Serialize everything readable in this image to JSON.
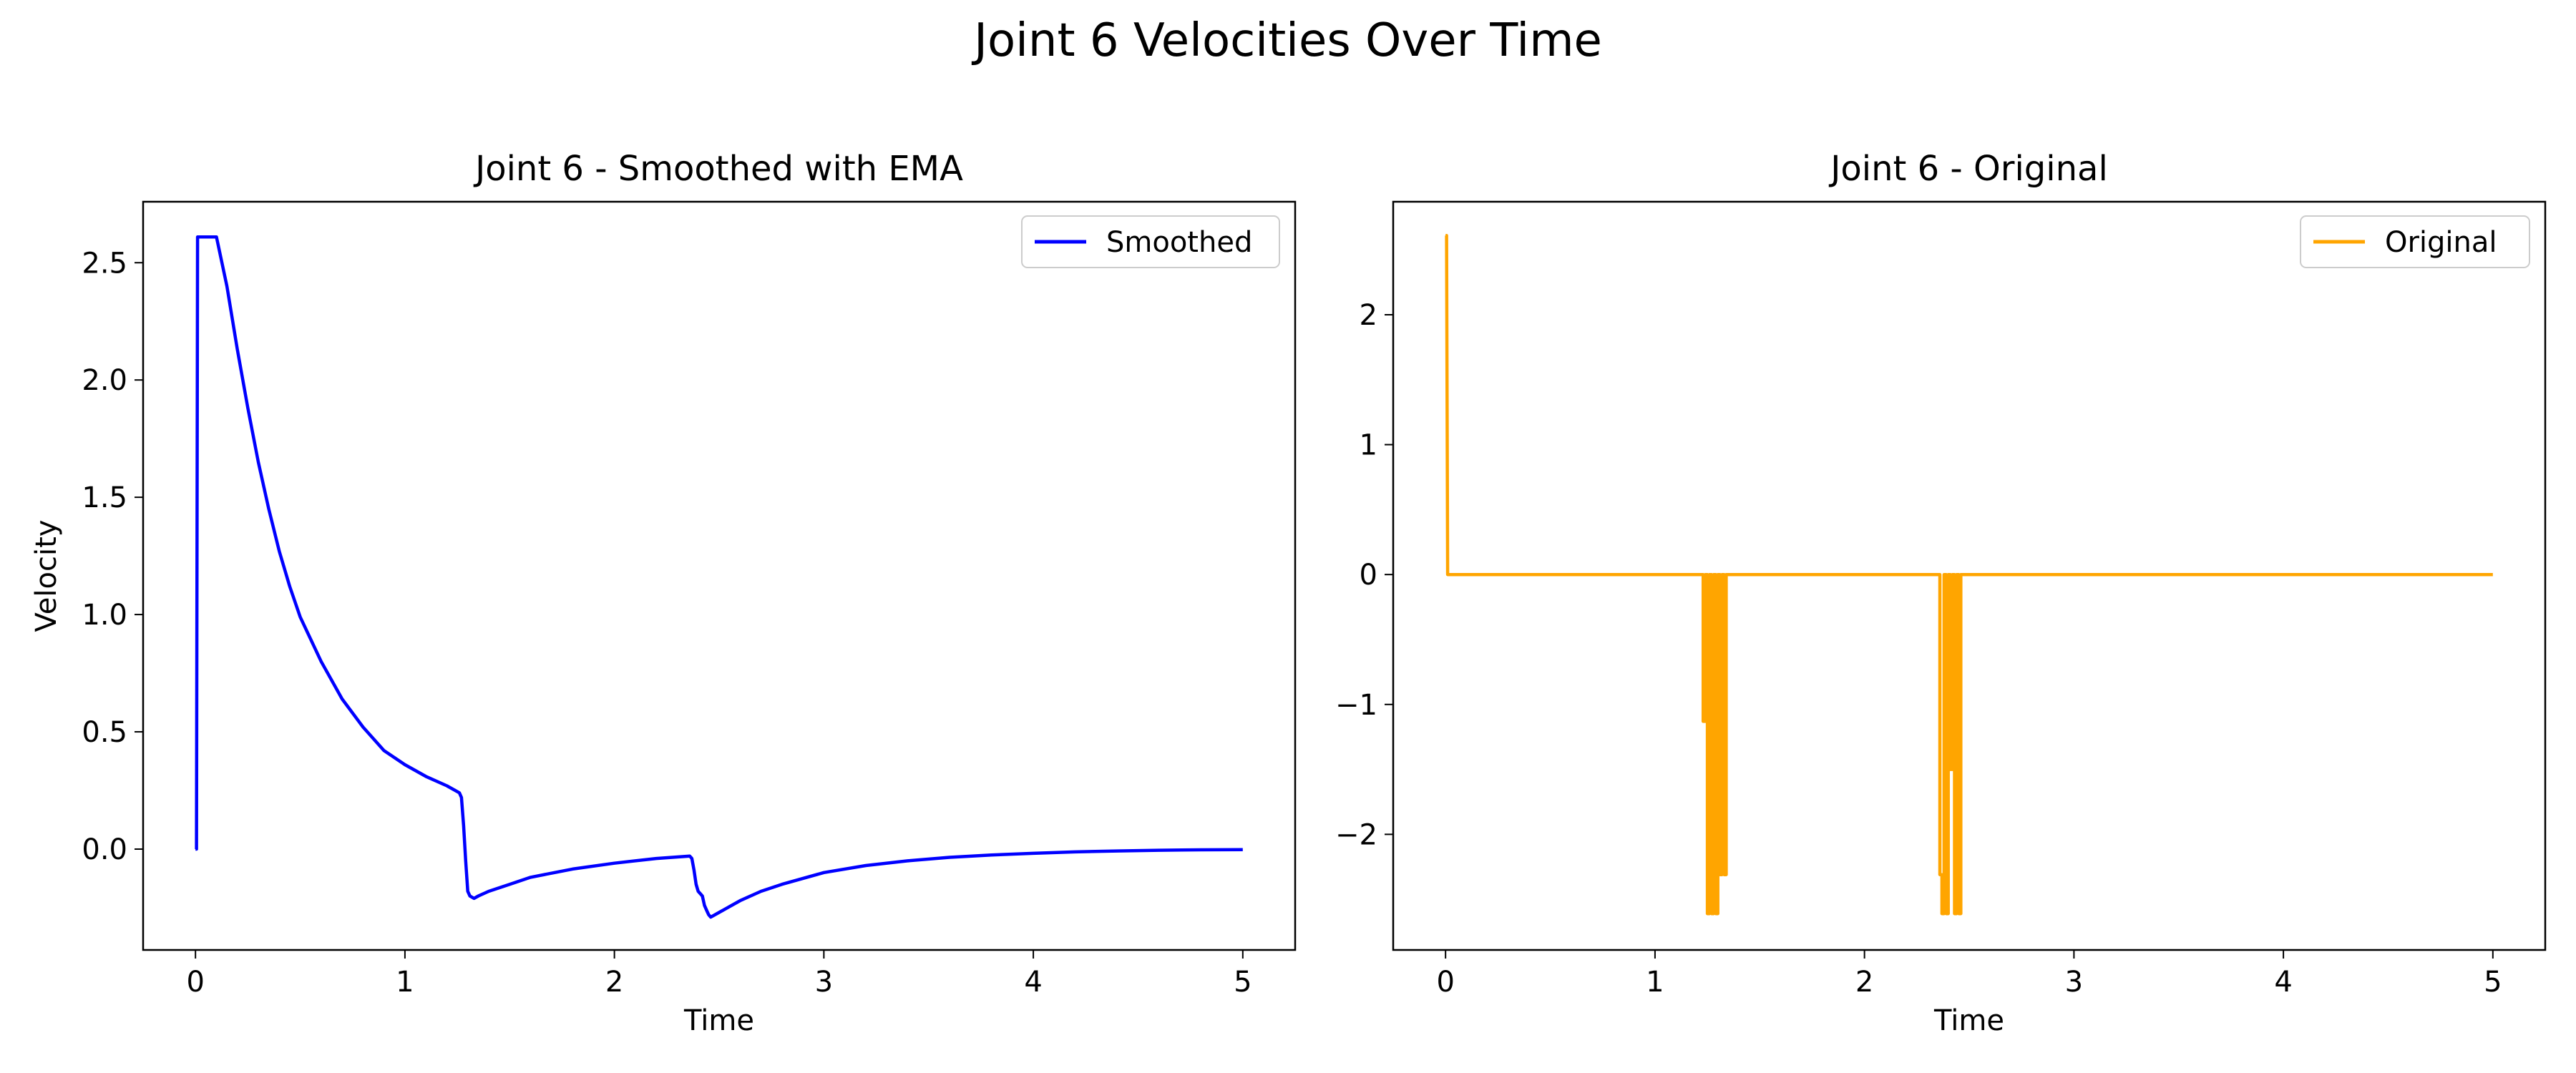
{
  "figure": {
    "title": "Joint 6 Velocities Over Time"
  },
  "chart_data": [
    {
      "type": "line",
      "title": "Joint 6 - Smoothed with EMA",
      "xlabel": "Time",
      "ylabel": "Velocity",
      "xlim": [
        -0.25,
        5.25
      ],
      "ylim": [
        -0.43,
        2.76
      ],
      "xticks": [
        0,
        1,
        2,
        3,
        4,
        5
      ],
      "xtick_labels": [
        "0",
        "1",
        "2",
        "3",
        "4",
        "5"
      ],
      "yticks": [
        0.0,
        0.5,
        1.0,
        1.5,
        2.0,
        2.5
      ],
      "ytick_labels": [
        "0.0",
        "0.5",
        "1.0",
        "1.5",
        "2.0",
        "2.5"
      ],
      "grid": false,
      "legend_position": "upper right",
      "series": [
        {
          "name": "Smoothed",
          "color": "#0000ff",
          "x": [
            0,
            0.005,
            0.01,
            0.07,
            0.1,
            0.15,
            0.2,
            0.25,
            0.3,
            0.35,
            0.4,
            0.45,
            0.5,
            0.6,
            0.7,
            0.8,
            0.9,
            1.0,
            1.1,
            1.2,
            1.26,
            1.27,
            1.28,
            1.29,
            1.3,
            1.31,
            1.33,
            1.35,
            1.4,
            1.5,
            1.6,
            1.8,
            2.0,
            2.2,
            2.36,
            2.37,
            2.38,
            2.39,
            2.4,
            2.41,
            2.42,
            2.43,
            2.44,
            2.45,
            2.46,
            2.5,
            2.6,
            2.7,
            2.8,
            3.0,
            3.2,
            3.4,
            3.6,
            3.8,
            4.0,
            4.2,
            4.4,
            4.6,
            4.8,
            5.0
          ],
          "y": [
            0.0,
            0.0,
            2.61,
            2.61,
            2.61,
            2.4,
            2.13,
            1.88,
            1.65,
            1.45,
            1.27,
            1.12,
            0.99,
            0.8,
            0.64,
            0.52,
            0.42,
            0.36,
            0.31,
            0.27,
            0.24,
            0.22,
            0.1,
            -0.05,
            -0.18,
            -0.2,
            -0.21,
            -0.2,
            -0.18,
            -0.15,
            -0.12,
            -0.085,
            -0.06,
            -0.04,
            -0.03,
            -0.04,
            -0.09,
            -0.15,
            -0.18,
            -0.19,
            -0.2,
            -0.24,
            -0.26,
            -0.28,
            -0.29,
            -0.27,
            -0.22,
            -0.18,
            -0.15,
            -0.1,
            -0.07,
            -0.05,
            -0.035,
            -0.025,
            -0.018,
            -0.012,
            -0.008,
            -0.005,
            -0.003,
            -0.002
          ]
        }
      ]
    },
    {
      "type": "line",
      "title": "Joint 6 - Original",
      "xlabel": "Time",
      "ylabel": "",
      "xlim": [
        -0.25,
        5.25
      ],
      "ylim": [
        -2.89,
        2.87
      ],
      "xticks": [
        0,
        1,
        2,
        3,
        4,
        5
      ],
      "xtick_labels": [
        "0",
        "1",
        "2",
        "3",
        "4",
        "5"
      ],
      "yticks": [
        -2,
        -1,
        0,
        1,
        2
      ],
      "ytick_labels": [
        "−2",
        "−1",
        "0",
        "1",
        "2"
      ],
      "grid": false,
      "legend_position": "upper right",
      "series": [
        {
          "name": "Original",
          "color": "#ffa500",
          "x": [
            0,
            0.005,
            0.01,
            1.23,
            1.23,
            1.24,
            1.24,
            1.25,
            1.25,
            1.26,
            1.26,
            1.27,
            1.27,
            1.28,
            1.28,
            1.29,
            1.29,
            1.3,
            1.3,
            1.31,
            1.31,
            1.32,
            1.32,
            1.33,
            1.33,
            1.34,
            1.34,
            2.36,
            2.36,
            2.37,
            2.37,
            2.38,
            2.38,
            2.39,
            2.39,
            2.4,
            2.4,
            2.41,
            2.41,
            2.42,
            2.42,
            2.43,
            2.43,
            2.44,
            2.44,
            2.45,
            2.45,
            2.46,
            2.46,
            5.0
          ],
          "y": [
            2.61,
            2.61,
            0.0,
            0.0,
            -1.13,
            -1.13,
            0.0,
            0.0,
            -2.61,
            -2.61,
            0.0,
            0.0,
            -2.61,
            -2.61,
            0.0,
            0.0,
            -2.61,
            -2.61,
            0.0,
            0.0,
            -2.31,
            -2.31,
            0.0,
            0.0,
            -2.31,
            -2.31,
            0.0,
            0.0,
            -2.31,
            -2.31,
            -2.61,
            -2.61,
            0.0,
            0.0,
            -2.61,
            -2.61,
            0.0,
            0.0,
            -1.5,
            -1.5,
            0.0,
            0.0,
            -2.61,
            -2.61,
            0.0,
            0.0,
            -2.61,
            -2.61,
            0.0,
            0.0
          ]
        }
      ]
    }
  ]
}
